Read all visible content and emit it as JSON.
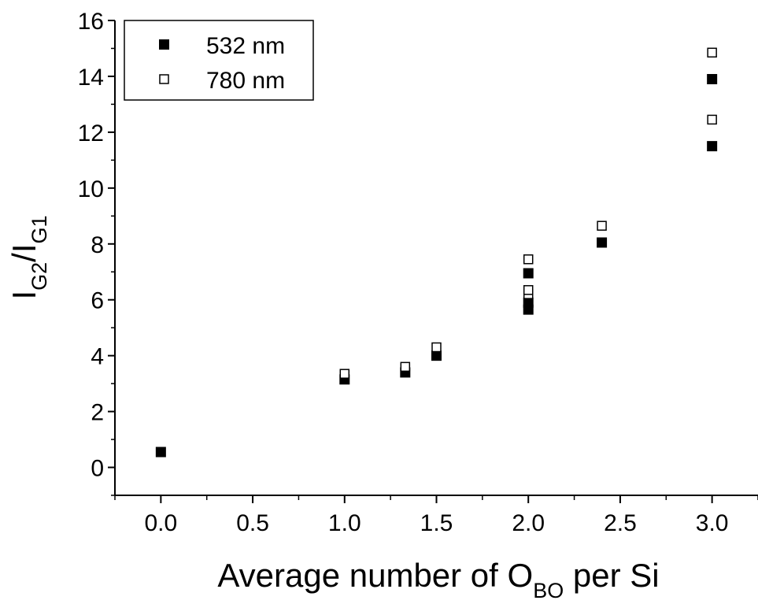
{
  "chart_data": {
    "type": "scatter",
    "xlabel": {
      "main": "Average number of O",
      "sub": "BO",
      "tail": " per Si"
    },
    "ylabel": {
      "p1": "I",
      "s1": "G2",
      "p2": "/I",
      "s2": "G1"
    },
    "xlim": [
      -0.25,
      3.25
    ],
    "ylim": [
      -1,
      16
    ],
    "xticks": [
      "0.0",
      "0.5",
      "1.0",
      "1.5",
      "2.0",
      "2.5",
      "3.0"
    ],
    "yticks": [
      "0",
      "2",
      "4",
      "6",
      "8",
      "10",
      "12",
      "14",
      "16"
    ],
    "legend_position": "top-left",
    "grid": false,
    "series": [
      {
        "name": "532 nm",
        "marker": "filled-square",
        "color": "#000000",
        "points": [
          [
            0.0,
            0.55
          ],
          [
            1.0,
            3.15
          ],
          [
            1.33,
            3.4
          ],
          [
            1.5,
            4.0
          ],
          [
            2.0,
            5.65
          ],
          [
            2.0,
            5.9
          ],
          [
            2.0,
            6.95
          ],
          [
            2.4,
            8.05
          ],
          [
            3.0,
            11.5
          ],
          [
            3.0,
            13.9
          ]
        ]
      },
      {
        "name": "780 nm",
        "marker": "open-square",
        "color": "#000000",
        "points": [
          [
            1.0,
            3.35
          ],
          [
            1.33,
            3.6
          ],
          [
            1.5,
            4.3
          ],
          [
            2.0,
            6.2
          ],
          [
            2.0,
            6.35
          ],
          [
            2.0,
            7.45
          ],
          [
            2.4,
            8.65
          ],
          [
            3.0,
            12.45
          ],
          [
            3.0,
            14.85
          ]
        ]
      }
    ]
  }
}
